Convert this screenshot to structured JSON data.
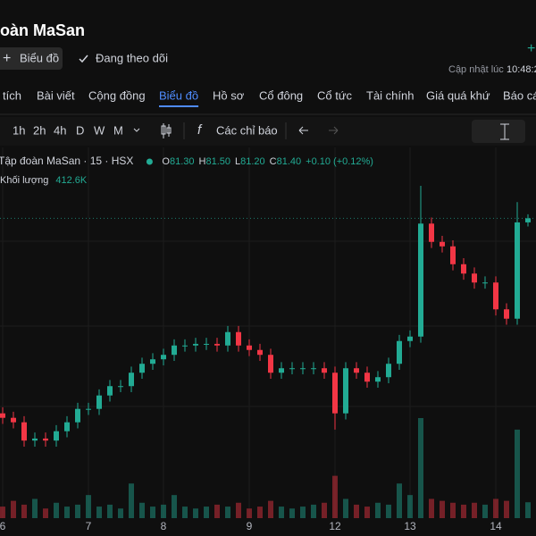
{
  "header": {
    "title": "oàn MaSan",
    "plus": "+",
    "updated": "Cập nhật lúc",
    "time": "10:48:2"
  },
  "actions": {
    "chart_button": "Biểu đồ",
    "follow": "Đang theo dõi"
  },
  "tabs": [
    "tích",
    "Bài viết",
    "Cộng đồng",
    "Biểu đồ",
    "Hồ sơ",
    "Cổ đông",
    "Cổ tức",
    "Tài chính",
    "Giá quá khứ",
    "Báo cá"
  ],
  "active_tab": 3,
  "toolbar": {
    "intervals": [
      "1h",
      "2h",
      "4h",
      "D",
      "W",
      "M"
    ],
    "indicators": "Các chỉ báo"
  },
  "chart_data": {
    "type": "candlestick",
    "title": "Tập đoàn MaSan · 15 · HSX",
    "ohlc_labels": [
      "O",
      "H",
      "L",
      "C"
    ],
    "ohlc_values": [
      "81.30",
      "81.50",
      "81.20",
      "81.40"
    ],
    "change": "+0.10 (+0.12%)",
    "volume_title": "Khối lượng",
    "volume_last": "412.6K",
    "up_color": "#22ab94",
    "down_color": "#f23645",
    "categories": [
      "6",
      null,
      null,
      null,
      null,
      null,
      null,
      null,
      "7",
      null,
      null,
      null,
      null,
      null,
      null,
      "8",
      null,
      null,
      null,
      null,
      null,
      null,
      null,
      "9",
      null,
      null,
      null,
      null,
      null,
      null,
      null,
      "12",
      null,
      null,
      null,
      null,
      null,
      null,
      "13",
      null,
      null,
      null,
      null,
      null,
      null,
      null,
      "14",
      null,
      null,
      null
    ],
    "open": [
      76.6,
      76.49,
      76.38,
      75.93,
      75.98,
      75.93,
      76.16,
      76.38,
      76.71,
      76.71,
      77.04,
      77.27,
      77.27,
      77.6,
      77.82,
      77.93,
      78.04,
      78.27,
      78.27,
      78.31,
      78.31,
      78.27,
      78.6,
      78.27,
      78.16,
      78.04,
      77.6,
      77.71,
      77.71,
      77.71,
      77.71,
      77.6,
      76.6,
      77.71,
      77.6,
      77.38,
      77.49,
      77.82,
      78.38,
      78.49,
      81.27,
      80.82,
      80.71,
      80.27,
      80.04,
      79.82,
      79.82,
      79.16,
      78.93,
      81.3
    ],
    "high": [
      76.75,
      76.64,
      76.53,
      76.13,
      76.13,
      76.31,
      76.53,
      76.86,
      76.86,
      77.19,
      77.42,
      77.42,
      77.75,
      77.97,
      78.08,
      78.19,
      78.42,
      78.42,
      78.46,
      78.46,
      78.46,
      78.75,
      78.75,
      78.42,
      78.31,
      78.19,
      77.86,
      77.86,
      77.86,
      77.86,
      77.86,
      77.75,
      77.86,
      77.86,
      77.75,
      77.64,
      77.97,
      78.53,
      78.64,
      82.2,
      81.42,
      80.97,
      80.86,
      80.42,
      80.19,
      79.97,
      79.97,
      79.31,
      81.8,
      81.5
    ],
    "low": [
      76.34,
      76.23,
      75.78,
      75.78,
      75.78,
      75.78,
      76.01,
      76.23,
      76.56,
      76.56,
      76.89,
      77.12,
      77.12,
      77.45,
      77.67,
      77.78,
      77.89,
      78.12,
      78.12,
      78.16,
      78.12,
      78.12,
      78.12,
      78.01,
      77.89,
      77.45,
      77.45,
      77.56,
      77.56,
      77.56,
      77.45,
      76.2,
      76.45,
      77.45,
      77.23,
      77.23,
      77.34,
      77.67,
      78.23,
      78.34,
      80.67,
      80.56,
      80.12,
      79.89,
      79.67,
      79.67,
      79.01,
      78.78,
      78.78,
      81.2
    ],
    "close": [
      76.49,
      76.38,
      75.93,
      75.98,
      75.93,
      76.16,
      76.38,
      76.71,
      76.71,
      77.04,
      77.27,
      77.27,
      77.6,
      77.82,
      77.93,
      78.04,
      78.27,
      78.27,
      78.31,
      78.31,
      78.27,
      78.6,
      78.27,
      78.16,
      78.04,
      77.6,
      77.71,
      77.71,
      77.71,
      77.71,
      77.6,
      76.6,
      77.71,
      77.6,
      77.38,
      77.49,
      77.82,
      78.38,
      78.49,
      81.27,
      80.82,
      80.71,
      80.27,
      80.04,
      79.82,
      79.82,
      79.16,
      78.93,
      81.3,
      81.4
    ],
    "volume": [
      300000,
      450000,
      350000,
      500000,
      250000,
      400000,
      300000,
      350000,
      600000,
      300000,
      350000,
      250000,
      900000,
      400000,
      300000,
      350000,
      600000,
      300000,
      250000,
      300000,
      350000,
      300000,
      400000,
      250000,
      300000,
      450000,
      300000,
      250000,
      300000,
      350000,
      400000,
      1100000,
      500000,
      350000,
      300000,
      400000,
      350000,
      900000,
      600000,
      2600000,
      500000,
      450000,
      400000,
      350000,
      400000,
      350000,
      500000,
      450000,
      2300000,
      412600
    ]
  }
}
